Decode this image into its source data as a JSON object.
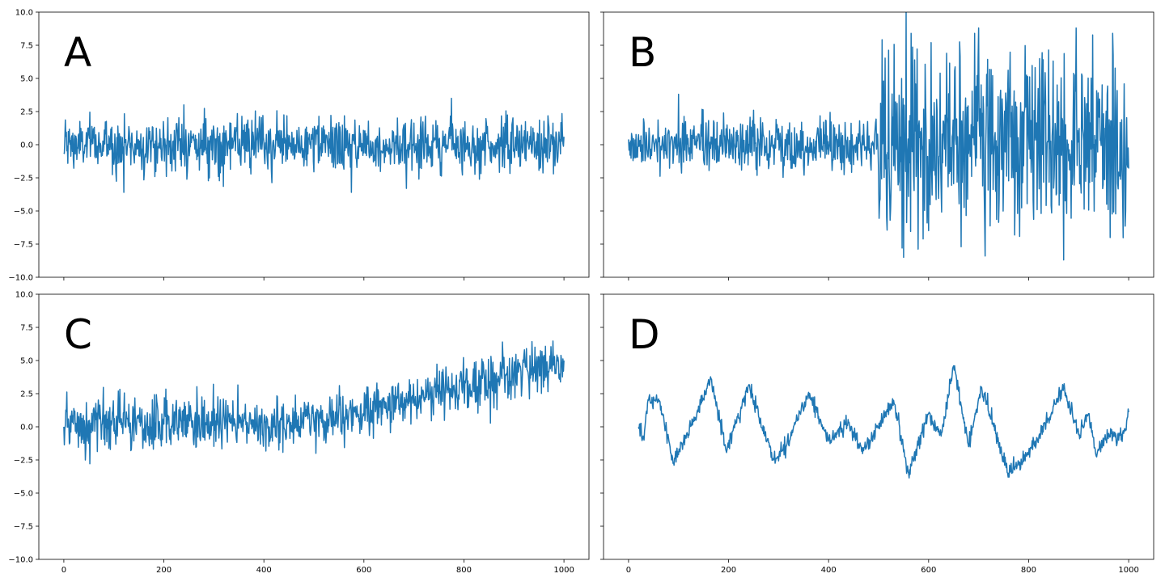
{
  "chart_data": {
    "type": "line",
    "layout": "2x2 grid, shared x and y axes",
    "line_color": "#1f77b4",
    "xlim": [
      -50,
      1050
    ],
    "ylim": [
      -10,
      10
    ],
    "x_ticks": [
      0,
      200,
      400,
      600,
      800,
      1000
    ],
    "x_tick_labels": [
      "0",
      "200",
      "400",
      "600",
      "800",
      "1000"
    ],
    "y_ticks": [
      -10,
      -7.5,
      -5,
      -2.5,
      0,
      2.5,
      5,
      7.5,
      10
    ],
    "y_tick_labels": [
      "−10.0",
      "−7.5",
      "−5.0",
      "−2.5",
      "0.0",
      "2.5",
      "5.0",
      "7.5",
      "10.0"
    ],
    "grid": false,
    "legend": false,
    "panels": [
      {
        "label": "A",
        "description": "stationary white noise",
        "x_range": [
          0,
          1000
        ],
        "noise_sd": 1.0,
        "series": [
          {
            "x": 0,
            "y": -0.6
          },
          {
            "x": 60,
            "y": 0.5
          },
          {
            "x": 120,
            "y": -3.6
          },
          {
            "x": 240,
            "y": 3.0
          },
          {
            "x": 400,
            "y": 0.2
          },
          {
            "x": 575,
            "y": -3.6
          },
          {
            "x": 685,
            "y": -3.3
          },
          {
            "x": 775,
            "y": 3.5
          },
          {
            "x": 1000,
            "y": 0.6
          }
        ]
      },
      {
        "label": "B",
        "description": "white noise with variance increasing after x=500",
        "x_range": [
          0,
          1000
        ],
        "noise_sd_before": 1.0,
        "noise_sd_after": 3.5,
        "change_point": 500,
        "series": [
          {
            "x": 0,
            "y": 0.4
          },
          {
            "x": 100,
            "y": 3.8
          },
          {
            "x": 250,
            "y": 2.6
          },
          {
            "x": 450,
            "y": -1.5
          },
          {
            "x": 510,
            "y": 4.8
          },
          {
            "x": 550,
            "y": -8.5
          },
          {
            "x": 555,
            "y": 10.0
          },
          {
            "x": 700,
            "y": 8.8
          },
          {
            "x": 870,
            "y": -8.7
          },
          {
            "x": 895,
            "y": 8.8
          },
          {
            "x": 1000,
            "y": -1.8
          }
        ]
      },
      {
        "label": "C",
        "description": "white noise with an upward trend starting near x=500",
        "x_range": [
          0,
          1000
        ],
        "noise_sd": 1.0,
        "series": [
          {
            "x": 0,
            "y": 0.0
          },
          {
            "x": 200,
            "y": 0.2
          },
          {
            "x": 400,
            "y": 0.2
          },
          {
            "x": 500,
            "y": 0.3
          },
          {
            "x": 600,
            "y": 1.0
          },
          {
            "x": 700,
            "y": 2.2
          },
          {
            "x": 800,
            "y": 3.0
          },
          {
            "x": 900,
            "y": 4.0
          },
          {
            "x": 1000,
            "y": 5.0
          }
        ]
      },
      {
        "label": "D",
        "description": "smooth wandering signal with small noise",
        "x_range": [
          20,
          1000
        ],
        "noise_sd": 0.3,
        "series": [
          {
            "x": 20,
            "y": 0.0
          },
          {
            "x": 30,
            "y": -0.8
          },
          {
            "x": 40,
            "y": 2.0
          },
          {
            "x": 60,
            "y": 2.1
          },
          {
            "x": 90,
            "y": -2.7
          },
          {
            "x": 130,
            "y": 0.4
          },
          {
            "x": 165,
            "y": 3.6
          },
          {
            "x": 195,
            "y": -1.8
          },
          {
            "x": 240,
            "y": 3.1
          },
          {
            "x": 290,
            "y": -2.5
          },
          {
            "x": 315,
            "y": -1.5
          },
          {
            "x": 360,
            "y": 2.6
          },
          {
            "x": 400,
            "y": -1.0
          },
          {
            "x": 440,
            "y": 0.3
          },
          {
            "x": 470,
            "y": -1.8
          },
          {
            "x": 530,
            "y": 2.0
          },
          {
            "x": 560,
            "y": -3.5
          },
          {
            "x": 600,
            "y": 1.0
          },
          {
            "x": 625,
            "y": -0.7
          },
          {
            "x": 650,
            "y": 4.6
          },
          {
            "x": 680,
            "y": -1.5
          },
          {
            "x": 705,
            "y": 3.0
          },
          {
            "x": 760,
            "y": -3.5
          },
          {
            "x": 800,
            "y": -2.0
          },
          {
            "x": 840,
            "y": 0.6
          },
          {
            "x": 870,
            "y": 3.0
          },
          {
            "x": 900,
            "y": -0.6
          },
          {
            "x": 920,
            "y": 1.0
          },
          {
            "x": 935,
            "y": -2.2
          },
          {
            "x": 960,
            "y": -0.5
          },
          {
            "x": 985,
            "y": -1.0
          },
          {
            "x": 1000,
            "y": 1.1
          }
        ]
      }
    ]
  }
}
